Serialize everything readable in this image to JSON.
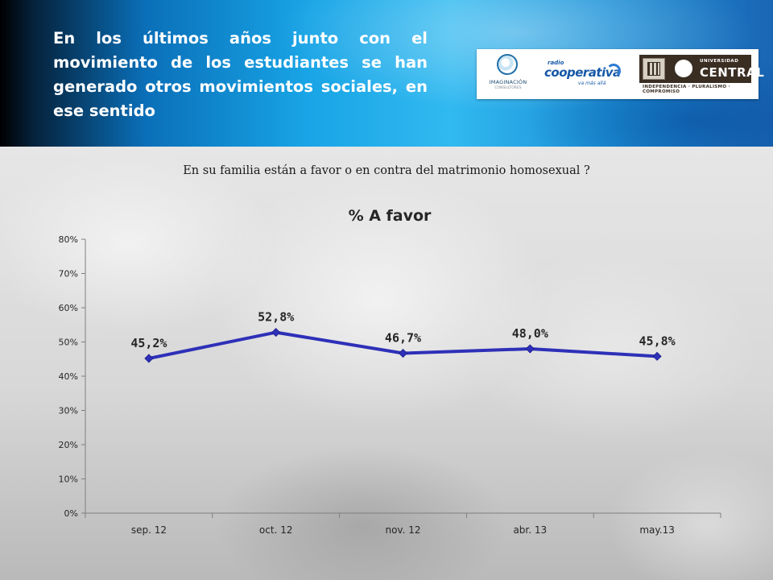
{
  "header": {
    "title": "En los últimos años junto con el movimiento de los estudiantes se han generado otros movimientos sociales, en ese sentido",
    "logos": {
      "imaginacion": {
        "name": "IMAGINACIÓN",
        "sub": "CONSULTORES"
      },
      "cooperativa": {
        "pre": "radio",
        "name": "cooperativa",
        "tagline": "va más allá"
      },
      "central": {
        "line1": "UNIVERSIDAD",
        "line2": "CENTRAL",
        "motto": "INDEPENDENCIA · PLURALISMO · COMPROMISO"
      }
    },
    "colors": {
      "gradient_dark": "#000000",
      "gradient_mid": "#18a4e6",
      "gradient_light": "#31b9f0"
    }
  },
  "question": "En su familia están a favor o en contra del matrimonio homosexual ?",
  "chart_data": {
    "type": "line",
    "title": "% A favor",
    "xlabel": "",
    "ylabel": "",
    "categories": [
      "sep. 12",
      "oct. 12",
      "nov. 12",
      "abr. 13",
      "may.13"
    ],
    "series": [
      {
        "values": [
          45.2,
          52.8,
          46.7,
          48.0,
          45.8
        ],
        "color": "#2e30b8"
      }
    ],
    "data_labels": [
      "45,2%",
      "52,8%",
      "46,7%",
      "48,0%",
      "45,8%"
    ],
    "y_ticks": [
      "0%",
      "10%",
      "20%",
      "30%",
      "40%",
      "50%",
      "60%",
      "70%",
      "80%"
    ],
    "ylim": [
      0,
      80
    ],
    "grid": false,
    "legend": "none"
  }
}
